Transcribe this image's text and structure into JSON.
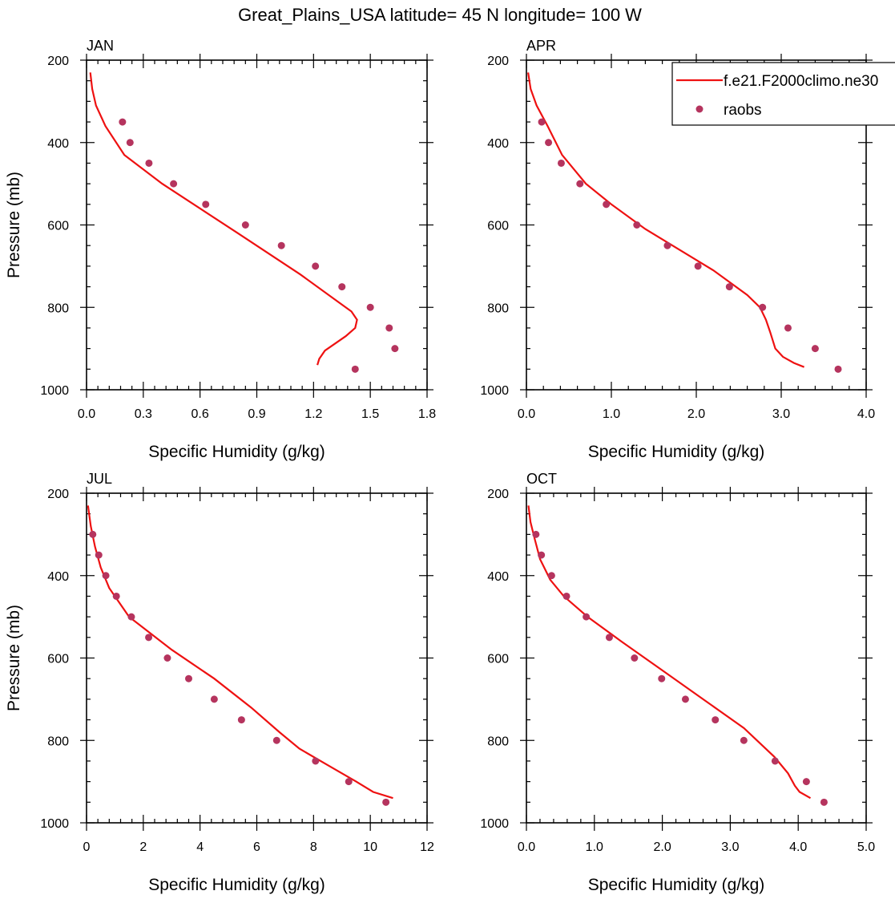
{
  "title": "Great_Plains_USA  latitude= 45 N longitude= 100 W",
  "colors": {
    "model": "#ee1111",
    "obs": "#b5345e"
  },
  "legend": {
    "position": "top-right of APR panel",
    "entries": [
      {
        "label": "f.e21.F2000climo.ne30",
        "marker": "line"
      },
      {
        "label": "raobs",
        "marker": "dot"
      }
    ]
  },
  "chart_data": [
    {
      "type": "line",
      "title": "JAN",
      "xlabel": "Specific Humidity (g/kg)",
      "ylabel": "Pressure (mb)",
      "xlim": [
        0,
        1.8
      ],
      "ylim": [
        1000,
        200
      ],
      "x_ticks": [
        "0.0",
        "0.3",
        "0.6",
        "0.9",
        "1.2",
        "1.5",
        "1.8"
      ],
      "y_ticks": [
        "200",
        "400",
        "600",
        "800",
        "1000"
      ],
      "series": [
        {
          "name": "f.e21.F2000climo.ne30",
          "kind": "line",
          "x": [
            0.02,
            0.03,
            0.05,
            0.1,
            0.2,
            0.4,
            0.8,
            1.13,
            1.31,
            1.4,
            1.43,
            1.42,
            1.37,
            1.26,
            1.23,
            1.22
          ],
          "y": [
            230,
            270,
            310,
            360,
            430,
            500,
            620,
            720,
            780,
            810,
            830,
            850,
            870,
            905,
            925,
            940
          ]
        },
        {
          "name": "raobs",
          "kind": "scatter",
          "x": [
            0.19,
            0.23,
            0.33,
            0.46,
            0.63,
            0.84,
            1.03,
            1.21,
            1.35,
            1.5,
            1.6,
            1.63,
            1.42
          ],
          "y": [
            350,
            400,
            450,
            500,
            550,
            600,
            650,
            700,
            750,
            800,
            850,
            900,
            950
          ]
        }
      ]
    },
    {
      "type": "line",
      "title": "APR",
      "xlabel": "Specific Humidity (g/kg)",
      "ylabel": "",
      "xlim": [
        0,
        4.0
      ],
      "ylim": [
        1000,
        200
      ],
      "x_ticks": [
        "0.0",
        "1.0",
        "2.0",
        "3.0",
        "4.0"
      ],
      "y_ticks": [
        "200",
        "400",
        "600",
        "800",
        "1000"
      ],
      "series": [
        {
          "name": "f.e21.F2000climo.ne30",
          "kind": "line",
          "x": [
            0.02,
            0.05,
            0.12,
            0.25,
            0.42,
            0.7,
            1.0,
            1.4,
            1.8,
            2.2,
            2.6,
            2.75,
            2.82,
            2.87,
            2.93,
            3.02,
            3.15,
            3.27
          ],
          "y": [
            230,
            270,
            310,
            360,
            430,
            500,
            550,
            610,
            660,
            710,
            770,
            800,
            830,
            860,
            900,
            920,
            935,
            945
          ]
        },
        {
          "name": "raobs",
          "kind": "scatter",
          "x": [
            0.18,
            0.26,
            0.41,
            0.63,
            0.94,
            1.3,
            1.66,
            2.02,
            2.39,
            2.78,
            3.08,
            3.4,
            3.67
          ],
          "y": [
            350,
            400,
            450,
            500,
            550,
            600,
            650,
            700,
            750,
            800,
            850,
            900,
            950
          ]
        }
      ]
    },
    {
      "type": "line",
      "title": "JUL",
      "xlabel": "Specific Humidity (g/kg)",
      "ylabel": "Pressure (mb)",
      "xlim": [
        0,
        12
      ],
      "ylim": [
        1000,
        200
      ],
      "x_ticks": [
        "0",
        "2",
        "4",
        "6",
        "8",
        "10",
        "12"
      ],
      "y_ticks": [
        "200",
        "400",
        "600",
        "800",
        "1000"
      ],
      "series": [
        {
          "name": "f.e21.F2000climo.ne30",
          "kind": "line",
          "x": [
            0.05,
            0.15,
            0.3,
            0.5,
            0.8,
            1.5,
            3.0,
            4.5,
            5.8,
            6.8,
            7.5,
            8.5,
            9.5,
            10.1,
            10.8
          ],
          "y": [
            230,
            280,
            330,
            380,
            430,
            500,
            580,
            650,
            720,
            780,
            820,
            860,
            900,
            925,
            940
          ]
        },
        {
          "name": "raobs",
          "kind": "scatter",
          "x": [
            0.22,
            0.43,
            0.68,
            1.05,
            1.58,
            2.19,
            2.85,
            3.6,
            4.5,
            5.46,
            6.7,
            8.07,
            9.24,
            10.55
          ],
          "y": [
            300,
            350,
            400,
            450,
            500,
            550,
            600,
            650,
            700,
            750,
            800,
            850,
            900,
            950
          ]
        }
      ]
    },
    {
      "type": "line",
      "title": "OCT",
      "xlabel": "Specific Humidity (g/kg)",
      "ylabel": "",
      "xlim": [
        0,
        5.0
      ],
      "ylim": [
        1000,
        200
      ],
      "x_ticks": [
        "0.0",
        "1.0",
        "2.0",
        "3.0",
        "4.0",
        "5.0"
      ],
      "y_ticks": [
        "200",
        "400",
        "600",
        "800",
        "1000"
      ],
      "series": [
        {
          "name": "f.e21.F2000climo.ne30",
          "kind": "line",
          "x": [
            0.03,
            0.06,
            0.12,
            0.2,
            0.35,
            0.55,
            0.9,
            1.4,
            2.0,
            2.6,
            3.2,
            3.65,
            3.85,
            3.95,
            4.02,
            4.18
          ],
          "y": [
            230,
            270,
            310,
            360,
            410,
            450,
            500,
            560,
            630,
            700,
            770,
            840,
            880,
            910,
            925,
            940
          ]
        },
        {
          "name": "raobs",
          "kind": "scatter",
          "x": [
            0.14,
            0.22,
            0.37,
            0.59,
            0.88,
            1.22,
            1.59,
            1.99,
            2.34,
            2.78,
            3.2,
            3.66,
            4.12,
            4.38
          ],
          "y": [
            300,
            350,
            400,
            450,
            500,
            550,
            600,
            650,
            700,
            750,
            800,
            850,
            900,
            950
          ]
        }
      ]
    }
  ]
}
